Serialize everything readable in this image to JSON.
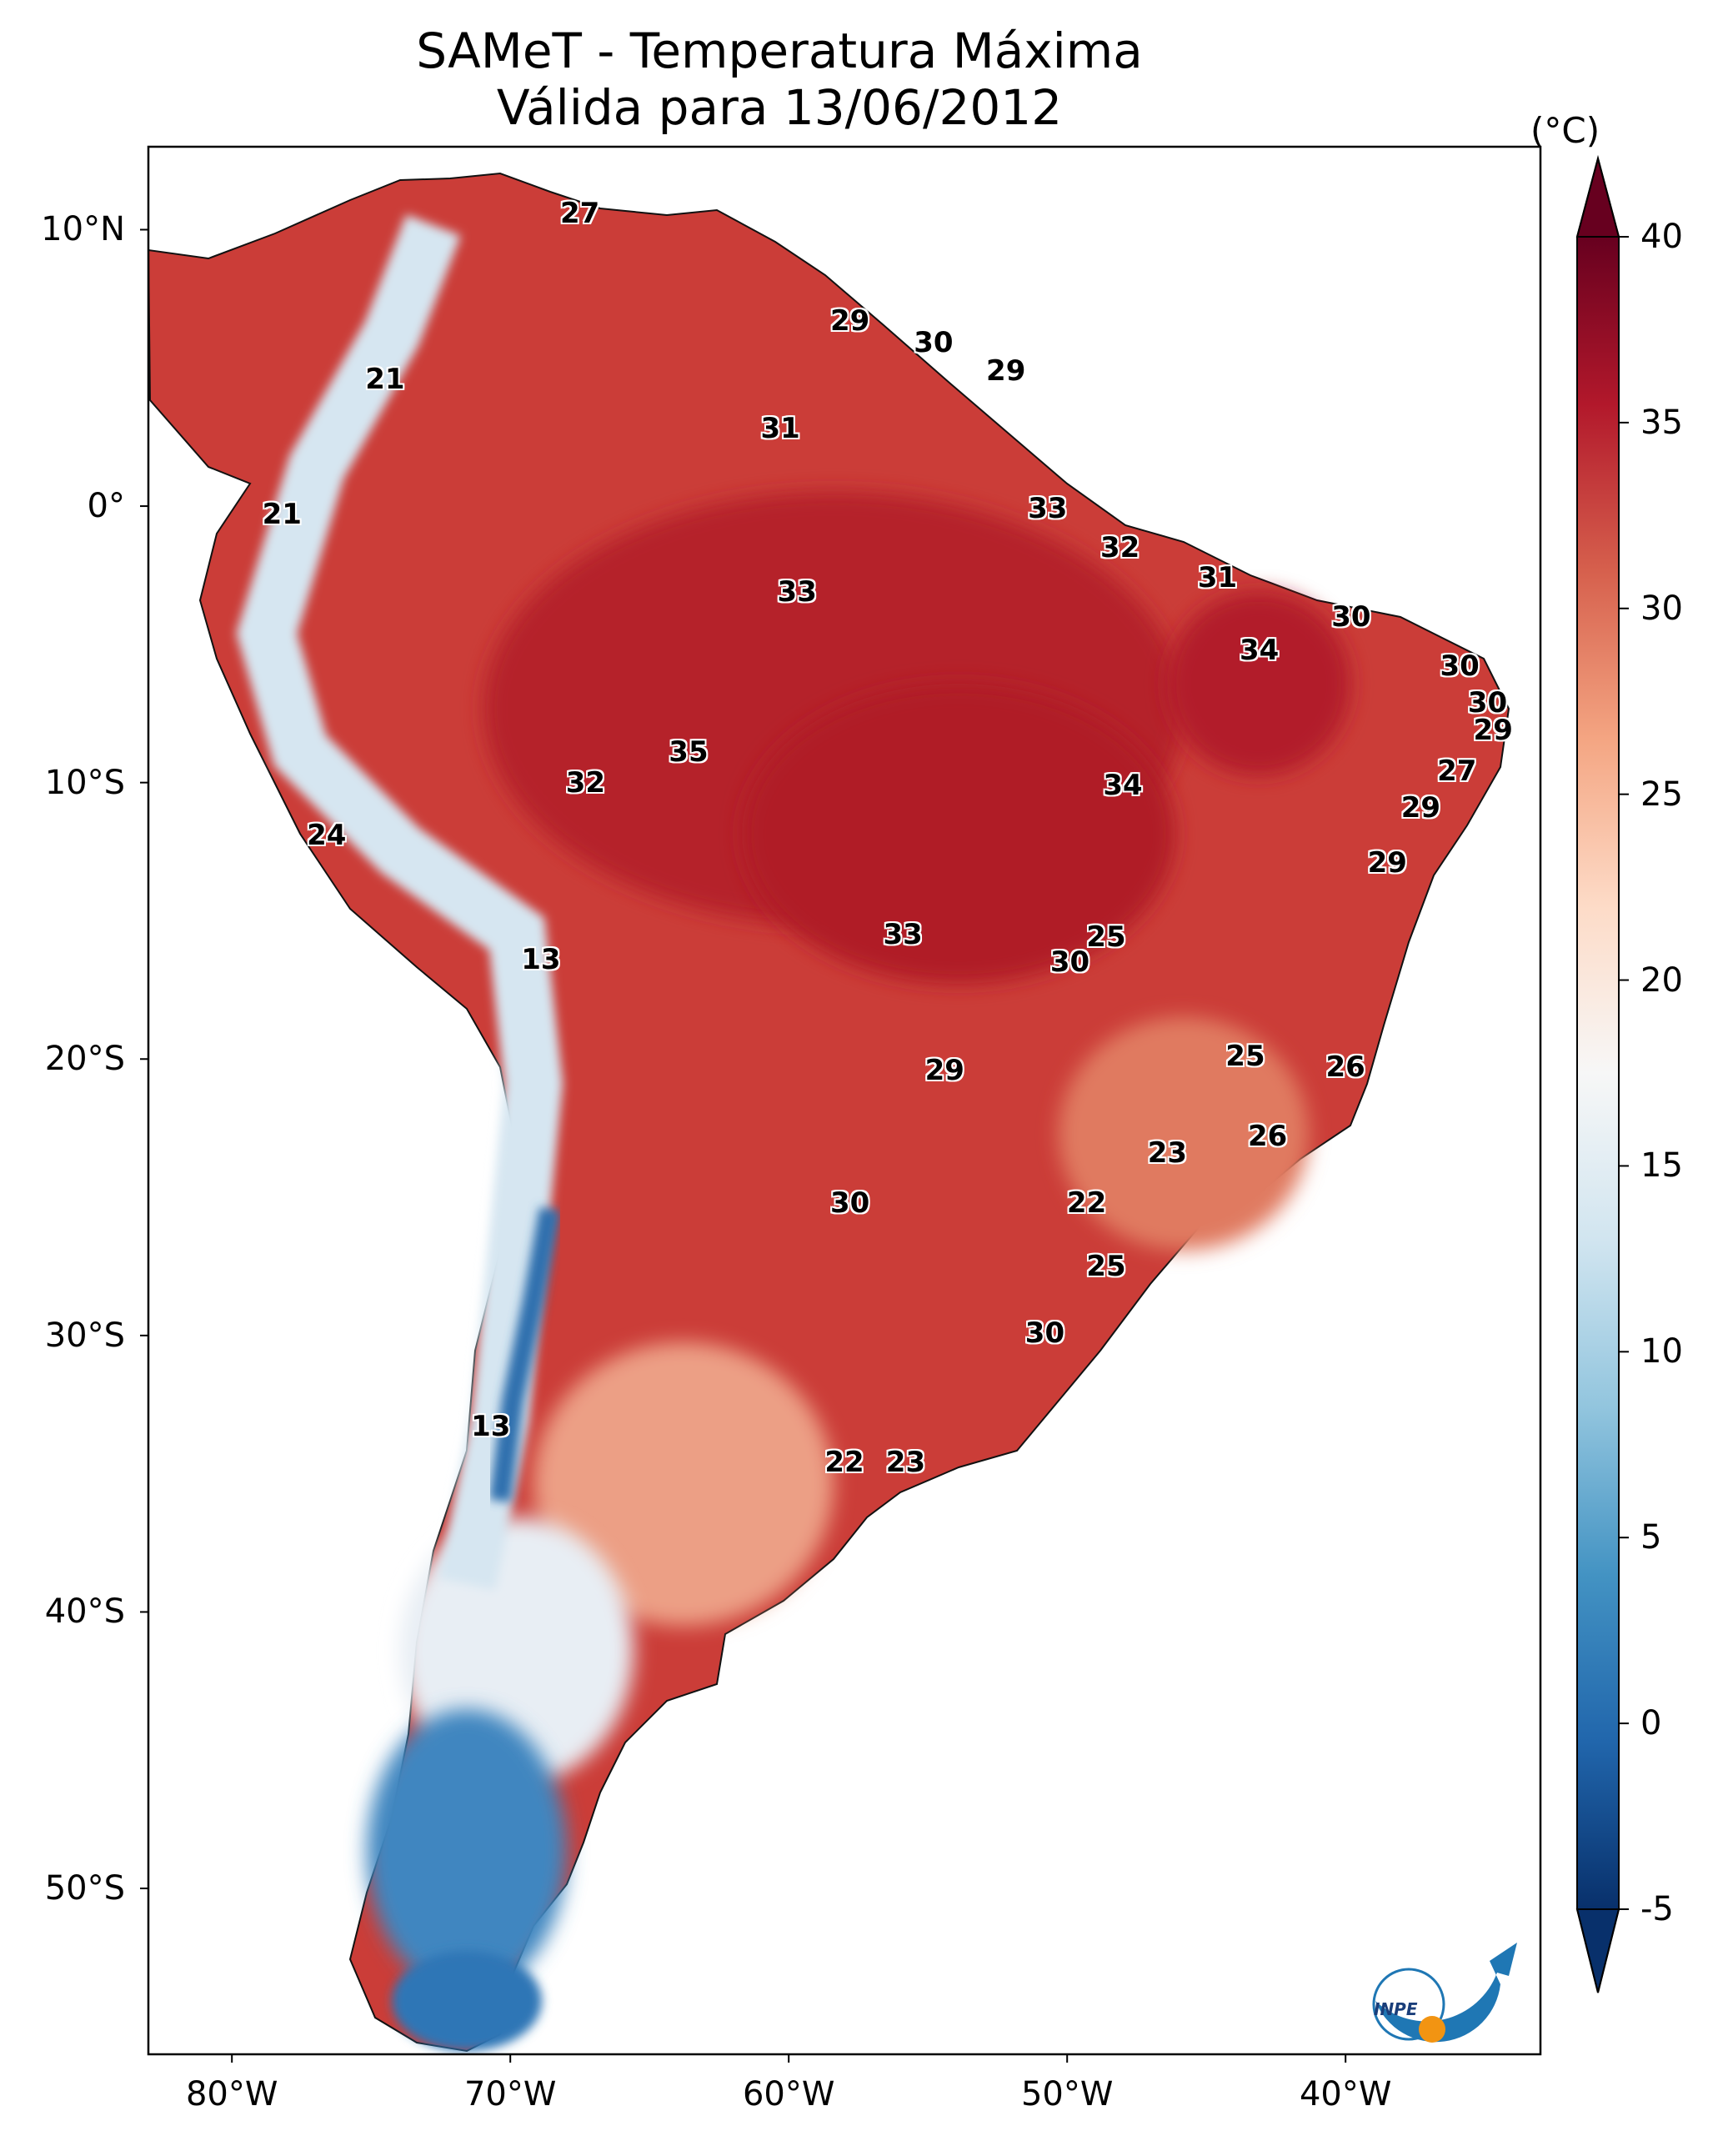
{
  "title": {
    "line1": "SAMeT - Temperatura Máxima",
    "line2": "Válida para 13/06/2012"
  },
  "axes": {
    "lat_ticks": [
      "10°N",
      "0°",
      "10°S",
      "20°S",
      "30°S",
      "40°S",
      "50°S"
    ],
    "lat_values": [
      10,
      0,
      -10,
      -20,
      -30,
      -40,
      -50
    ],
    "lon_ticks": [
      "80°W",
      "70°W",
      "60°W",
      "50°W",
      "40°W"
    ],
    "lon_values": [
      -80,
      -70,
      -60,
      -50,
      -40
    ],
    "lon_range": [
      -83,
      -33
    ],
    "lat_range": [
      -56,
      13
    ]
  },
  "colorbar": {
    "unit": "(°C)",
    "ticks": [
      "40",
      "35",
      "30",
      "25",
      "20",
      "15",
      "10",
      "5",
      "0",
      "-5"
    ],
    "tick_values": [
      40,
      35,
      30,
      25,
      20,
      15,
      10,
      5,
      0,
      -5
    ],
    "range": [
      -5,
      40
    ],
    "colors": [
      "#08306b",
      "#2166ac",
      "#4393c3",
      "#92c5de",
      "#d1e5f0",
      "#f7f7f7",
      "#fddbc7",
      "#f4a582",
      "#d6604d",
      "#b2182b",
      "#67001f"
    ]
  },
  "contour_labels": [
    {
      "text": "27",
      "lon": -67.5,
      "lat": 10.6
    },
    {
      "text": "21",
      "lon": -74.5,
      "lat": 4.6
    },
    {
      "text": "29",
      "lon": -57.8,
      "lat": 6.7
    },
    {
      "text": "30",
      "lon": -54.8,
      "lat": 5.9
    },
    {
      "text": "29",
      "lon": -52.2,
      "lat": 4.9
    },
    {
      "text": "31",
      "lon": -60.3,
      "lat": 2.8
    },
    {
      "text": "21",
      "lon": -78.2,
      "lat": -0.3
    },
    {
      "text": "33",
      "lon": -50.7,
      "lat": -0.1
    },
    {
      "text": "32",
      "lon": -48.1,
      "lat": -1.5
    },
    {
      "text": "33",
      "lon": -59.7,
      "lat": -3.1
    },
    {
      "text": "31",
      "lon": -44.6,
      "lat": -2.6
    },
    {
      "text": "30",
      "lon": -39.8,
      "lat": -4.0
    },
    {
      "text": "34",
      "lon": -43.1,
      "lat": -5.2
    },
    {
      "text": "30",
      "lon": -35.9,
      "lat": -5.8
    },
    {
      "text": "30",
      "lon": -34.9,
      "lat": -7.1
    },
    {
      "text": "29",
      "lon": -34.7,
      "lat": -8.1
    },
    {
      "text": "35",
      "lon": -63.6,
      "lat": -8.9
    },
    {
      "text": "32",
      "lon": -67.3,
      "lat": -10.0
    },
    {
      "text": "34",
      "lon": -48.0,
      "lat": -10.1
    },
    {
      "text": "27",
      "lon": -36.0,
      "lat": -9.6
    },
    {
      "text": "29",
      "lon": -37.3,
      "lat": -10.9
    },
    {
      "text": "24",
      "lon": -76.6,
      "lat": -11.9
    },
    {
      "text": "29",
      "lon": -38.5,
      "lat": -12.9
    },
    {
      "text": "25",
      "lon": -48.6,
      "lat": -15.6
    },
    {
      "text": "33",
      "lon": -55.9,
      "lat": -15.5
    },
    {
      "text": "30",
      "lon": -49.9,
      "lat": -16.5
    },
    {
      "text": "13",
      "lon": -68.9,
      "lat": -16.4
    },
    {
      "text": "25",
      "lon": -43.6,
      "lat": -19.9
    },
    {
      "text": "26",
      "lon": -40.0,
      "lat": -20.3
    },
    {
      "text": "29",
      "lon": -54.4,
      "lat": -20.4
    },
    {
      "text": "26",
      "lon": -42.8,
      "lat": -22.8
    },
    {
      "text": "23",
      "lon": -46.4,
      "lat": -23.4
    },
    {
      "text": "22",
      "lon": -49.3,
      "lat": -25.2
    },
    {
      "text": "30",
      "lon": -57.8,
      "lat": -25.2
    },
    {
      "text": "25",
      "lon": -48.6,
      "lat": -27.5
    },
    {
      "text": "30",
      "lon": -50.8,
      "lat": -29.9
    },
    {
      "text": "13",
      "lon": -70.7,
      "lat": -33.3
    },
    {
      "text": "22",
      "lon": -58.0,
      "lat": -34.6
    },
    {
      "text": "23",
      "lon": -55.8,
      "lat": -34.6
    }
  ],
  "logo": {
    "text": "INPE"
  }
}
